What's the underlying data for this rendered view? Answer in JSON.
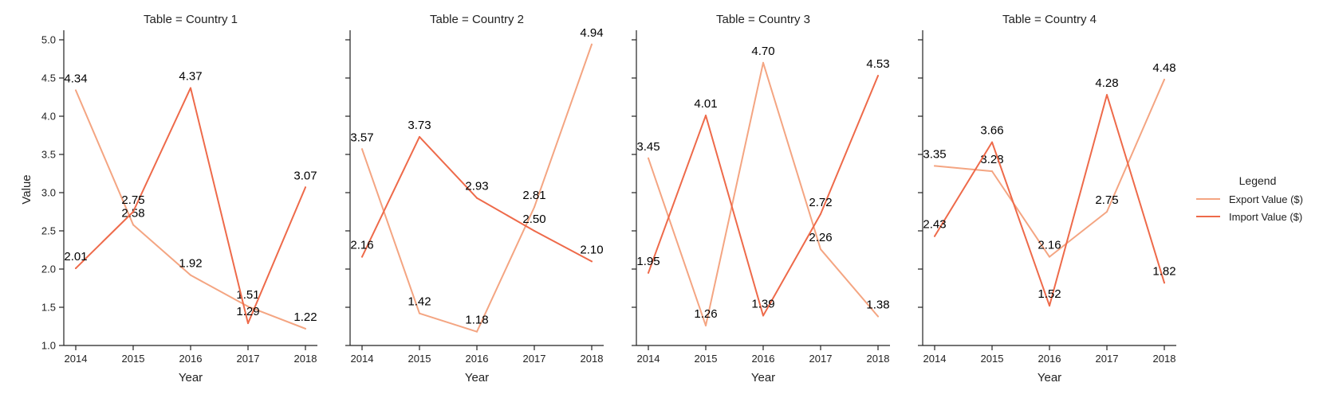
{
  "chart_data": {
    "type": "line",
    "x": [
      2014,
      2015,
      2016,
      2017,
      2018
    ],
    "xlabel": "Year",
    "ylabel": "Value",
    "ylim": [
      1.0,
      5.0
    ],
    "yticks": [
      "1.0",
      "1.5",
      "2.0",
      "2.5",
      "3.0",
      "3.5",
      "4.0",
      "4.5",
      "5.0"
    ],
    "ytick_values": [
      1.0,
      1.5,
      2.0,
      2.5,
      3.0,
      3.5,
      4.0,
      4.5,
      5.0
    ],
    "xticks": [
      "2014",
      "2015",
      "2016",
      "2017",
      "2018"
    ],
    "grid": false,
    "legend": {
      "title": "Legend",
      "placement": "right",
      "entries": [
        {
          "name": "Export Value ($)",
          "color": "#f4a582"
        },
        {
          "name": "Import Value ($)",
          "color": "#ee6a4a"
        }
      ]
    },
    "panels": [
      {
        "title": "Table = Country 1",
        "series": [
          {
            "name": "Export Value ($)",
            "values": [
              4.34,
              2.58,
              1.92,
              1.51,
              1.22
            ],
            "labels": [
              "4.34",
              "2.58",
              "1.92",
              "1.51",
              "1.22"
            ]
          },
          {
            "name": "Import Value ($)",
            "values": [
              2.01,
              2.75,
              4.37,
              1.29,
              3.07
            ],
            "labels": [
              "2.01",
              "2.75",
              "4.37",
              "1.29",
              "3.07"
            ]
          }
        ]
      },
      {
        "title": "Table = Country 2",
        "series": [
          {
            "name": "Export Value ($)",
            "values": [
              3.57,
              1.42,
              1.18,
              2.81,
              4.94
            ],
            "labels": [
              "3.57",
              "1.42",
              "1.18",
              "2.81",
              "4.94"
            ]
          },
          {
            "name": "Import Value ($)",
            "values": [
              2.16,
              3.73,
              2.93,
              2.5,
              2.1
            ],
            "labels": [
              "2.16",
              "3.73",
              "2.93",
              "2.50",
              "2.10"
            ]
          }
        ]
      },
      {
        "title": "Table = Country 3",
        "series": [
          {
            "name": "Export Value ($)",
            "values": [
              3.45,
              1.26,
              4.7,
              2.26,
              1.38
            ],
            "labels": [
              "3.45",
              "1.26",
              "4.70",
              "2.26",
              "1.38"
            ]
          },
          {
            "name": "Import Value ($)",
            "values": [
              1.95,
              4.01,
              1.39,
              2.72,
              4.53
            ],
            "labels": [
              "1.95",
              "4.01",
              "1.39",
              "2.72",
              "4.53"
            ]
          }
        ]
      },
      {
        "title": "Table = Country 4",
        "series": [
          {
            "name": "Export Value ($)",
            "values": [
              3.35,
              3.28,
              2.16,
              2.75,
              4.48
            ],
            "labels": [
              "3.35",
              "3.28",
              "2.16",
              "2.75",
              "4.48"
            ]
          },
          {
            "name": "Import Value ($)",
            "values": [
              2.43,
              3.66,
              1.52,
              4.28,
              1.82
            ],
            "labels": [
              "2.43",
              "3.66",
              "1.52",
              "4.28",
              "1.82"
            ]
          }
        ]
      }
    ]
  }
}
